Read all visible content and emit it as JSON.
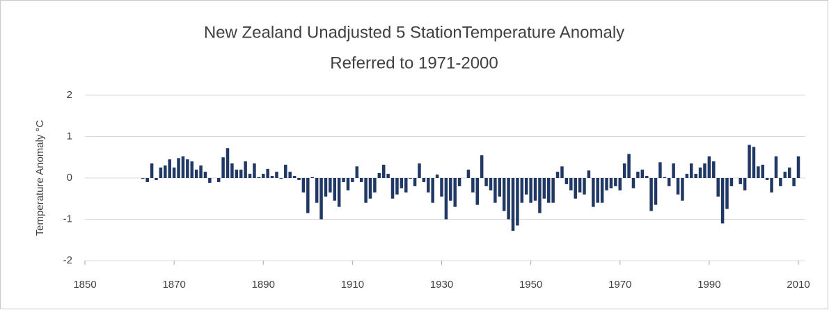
{
  "chart_data": {
    "type": "bar",
    "title": "New Zealand Unadjusted  5 StationTemperature Anomaly",
    "subtitle": "Referred to 1971-2000",
    "y_label": "Temperature Anomaly  °C",
    "color": "#1f3864",
    "grid": true,
    "xlim": [
      1850,
      2010
    ],
    "xticks": [
      1850,
      1870,
      1890,
      1910,
      1930,
      1950,
      1970,
      1990,
      2010
    ],
    "ylim": [
      -2,
      2
    ],
    "yticks": [
      -2,
      -1,
      0,
      1,
      2
    ],
    "x": [
      1863,
      1864,
      1865,
      1866,
      1867,
      1868,
      1869,
      1870,
      1871,
      1872,
      1873,
      1874,
      1875,
      1876,
      1877,
      1878,
      1879,
      1880,
      1881,
      1882,
      1883,
      1884,
      1885,
      1886,
      1887,
      1888,
      1889,
      1890,
      1891,
      1892,
      1893,
      1894,
      1895,
      1896,
      1897,
      1898,
      1899,
      1900,
      1901,
      1902,
      1903,
      1904,
      1905,
      1906,
      1907,
      1908,
      1909,
      1910,
      1911,
      1912,
      1913,
      1914,
      1915,
      1916,
      1917,
      1918,
      1919,
      1920,
      1921,
      1922,
      1923,
      1924,
      1925,
      1926,
      1927,
      1928,
      1929,
      1930,
      1931,
      1932,
      1933,
      1934,
      1935,
      1936,
      1937,
      1938,
      1939,
      1940,
      1941,
      1942,
      1943,
      1944,
      1945,
      1946,
      1947,
      1948,
      1949,
      1950,
      1951,
      1952,
      1953,
      1954,
      1955,
      1956,
      1957,
      1958,
      1959,
      1960,
      1961,
      1962,
      1963,
      1964,
      1965,
      1966,
      1967,
      1968,
      1969,
      1970,
      1971,
      1972,
      1973,
      1974,
      1975,
      1976,
      1977,
      1978,
      1979,
      1980,
      1981,
      1982,
      1983,
      1984,
      1985,
      1986,
      1987,
      1988,
      1989,
      1990,
      1991,
      1992,
      1993,
      1994,
      1995,
      1996,
      1997,
      1998,
      1999,
      2000,
      2001,
      2002,
      2003,
      2004,
      2005,
      2006,
      2007,
      2008,
      2009,
      2010
    ],
    "values": [
      -0.02,
      -0.1,
      0.35,
      -0.05,
      0.25,
      0.3,
      0.45,
      0.25,
      0.48,
      0.52,
      0.45,
      0.4,
      0.2,
      0.3,
      0.15,
      -0.12,
      0,
      -0.1,
      0.5,
      0.72,
      0.35,
      0.2,
      0.2,
      0.4,
      0.1,
      0.35,
      0.02,
      0.1,
      0.22,
      0.05,
      0.15,
      -0.02,
      0.32,
      0.15,
      0.05,
      -0.05,
      -0.35,
      -0.85,
      0.02,
      -0.6,
      -1.0,
      -0.45,
      -0.35,
      -0.55,
      -0.7,
      -0.1,
      -0.3,
      -0.1,
      0.28,
      -0.1,
      -0.6,
      -0.5,
      -0.35,
      0.12,
      0.32,
      0.1,
      -0.5,
      -0.4,
      -0.25,
      -0.35,
      -0.02,
      -0.2,
      0.35,
      -0.1,
      -0.35,
      -0.6,
      0.08,
      -0.45,
      -1.0,
      -0.55,
      -0.7,
      -0.2,
      0,
      0.2,
      -0.35,
      -0.65,
      0.55,
      -0.2,
      -0.3,
      -0.6,
      -0.45,
      -0.8,
      -1.0,
      -1.28,
      -1.15,
      -0.6,
      -0.4,
      -0.6,
      -0.55,
      -0.85,
      -0.5,
      -0.6,
      -0.6,
      0.15,
      0.28,
      -0.15,
      -0.3,
      -0.5,
      -0.35,
      -0.4,
      0.18,
      -0.7,
      -0.6,
      -0.6,
      -0.3,
      -0.25,
      -0.2,
      -0.3,
      0.35,
      0.58,
      -0.25,
      0.15,
      0.2,
      0.05,
      -0.8,
      -0.65,
      0.38,
      0.02,
      -0.2,
      0.35,
      -0.4,
      -0.55,
      0.1,
      0.35,
      0.1,
      0.25,
      0.35,
      0.52,
      0.4,
      -0.45,
      -1.1,
      -0.75,
      -0.2,
      0,
      -0.15,
      -0.3,
      0.8,
      0.75,
      0.28,
      0.32,
      -0.05,
      -0.35,
      0.52,
      -0.2,
      0.15,
      0.25,
      -0.2,
      0.52
    ]
  }
}
